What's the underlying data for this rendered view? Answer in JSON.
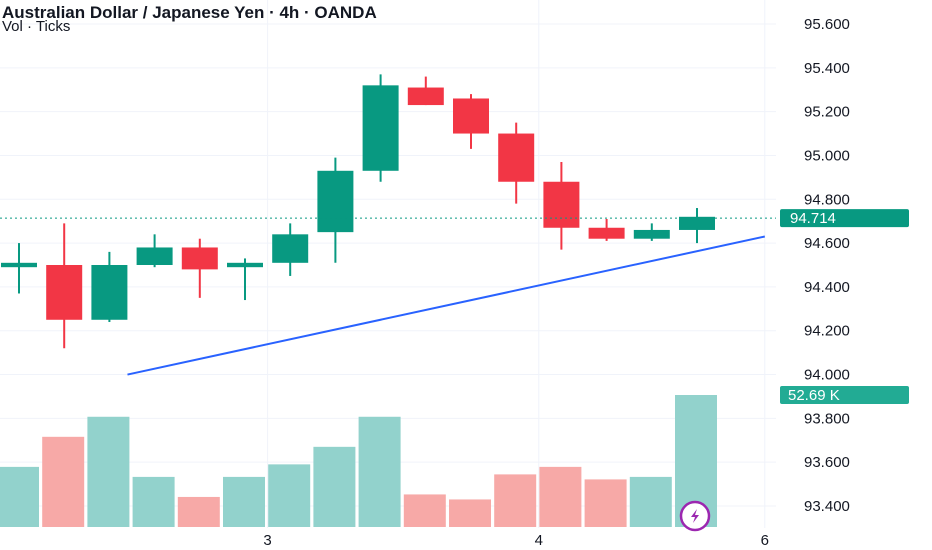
{
  "header": {
    "title": "Australian Dollar / Japanese Yen · 4h · OANDA",
    "subtitle": "Vol · Ticks"
  },
  "colors": {
    "up": "#089981",
    "down": "#f23645",
    "up_volume": "#92d2cc",
    "down_volume": "#f7a9a7",
    "trendline": "#2962ff",
    "grid": "#f0f3fa",
    "text": "#131722"
  },
  "chart_data": {
    "type": "candlestick",
    "y_axis": {
      "ticks": [
        "95.600",
        "95.400",
        "95.200",
        "95.000",
        "94.800",
        "94.600",
        "94.400",
        "94.200",
        "94.000",
        "93.800",
        "93.600",
        "93.400"
      ],
      "ylim": [
        93.35,
        95.65
      ],
      "position": "right"
    },
    "x_axis": {
      "ticks": [
        {
          "label": "3",
          "at_bar": 5.5
        },
        {
          "label": "4",
          "at_bar": 11.5
        },
        {
          "label": "6",
          "at_bar": 16.5
        }
      ]
    },
    "candles": [
      {
        "o": 94.49,
        "h": 94.6,
        "l": 94.37,
        "c": 94.51
      },
      {
        "o": 94.5,
        "h": 94.69,
        "l": 94.12,
        "c": 94.25
      },
      {
        "o": 94.25,
        "h": 94.56,
        "l": 94.24,
        "c": 94.5
      },
      {
        "o": 94.5,
        "h": 94.64,
        "l": 94.49,
        "c": 94.58
      },
      {
        "o": 94.58,
        "h": 94.62,
        "l": 94.35,
        "c": 94.48
      },
      {
        "o": 94.49,
        "h": 94.53,
        "l": 94.34,
        "c": 94.51
      },
      {
        "o": 94.51,
        "h": 94.69,
        "l": 94.45,
        "c": 94.64
      },
      {
        "o": 94.65,
        "h": 94.99,
        "l": 94.51,
        "c": 94.93
      },
      {
        "o": 94.93,
        "h": 95.37,
        "l": 94.88,
        "c": 95.32
      },
      {
        "o": 95.31,
        "h": 95.36,
        "l": 95.23,
        "c": 95.23
      },
      {
        "o": 95.26,
        "h": 95.28,
        "l": 95.03,
        "c": 95.1
      },
      {
        "o": 95.1,
        "h": 95.15,
        "l": 94.78,
        "c": 94.88
      },
      {
        "o": 94.88,
        "h": 94.97,
        "l": 94.57,
        "c": 94.67
      },
      {
        "o": 94.67,
        "h": 94.71,
        "l": 94.61,
        "c": 94.62
      },
      {
        "o": 94.62,
        "h": 94.69,
        "l": 94.61,
        "c": 94.66
      },
      {
        "o": 94.66,
        "h": 94.76,
        "l": 94.6,
        "c": 94.72
      }
    ],
    "volume": {
      "label": "52.69 K",
      "values": [
        24,
        36,
        44,
        20,
        12,
        20,
        25,
        32,
        44,
        13,
        11,
        21,
        24,
        19,
        20,
        52.69
      ]
    },
    "last_price": {
      "value": 94.714,
      "label": "94.714"
    },
    "trendline": {
      "from": {
        "bar": 2.4,
        "price": 94.0
      },
      "to": {
        "bar": 16.5,
        "price": 94.63
      }
    },
    "grid": true
  }
}
